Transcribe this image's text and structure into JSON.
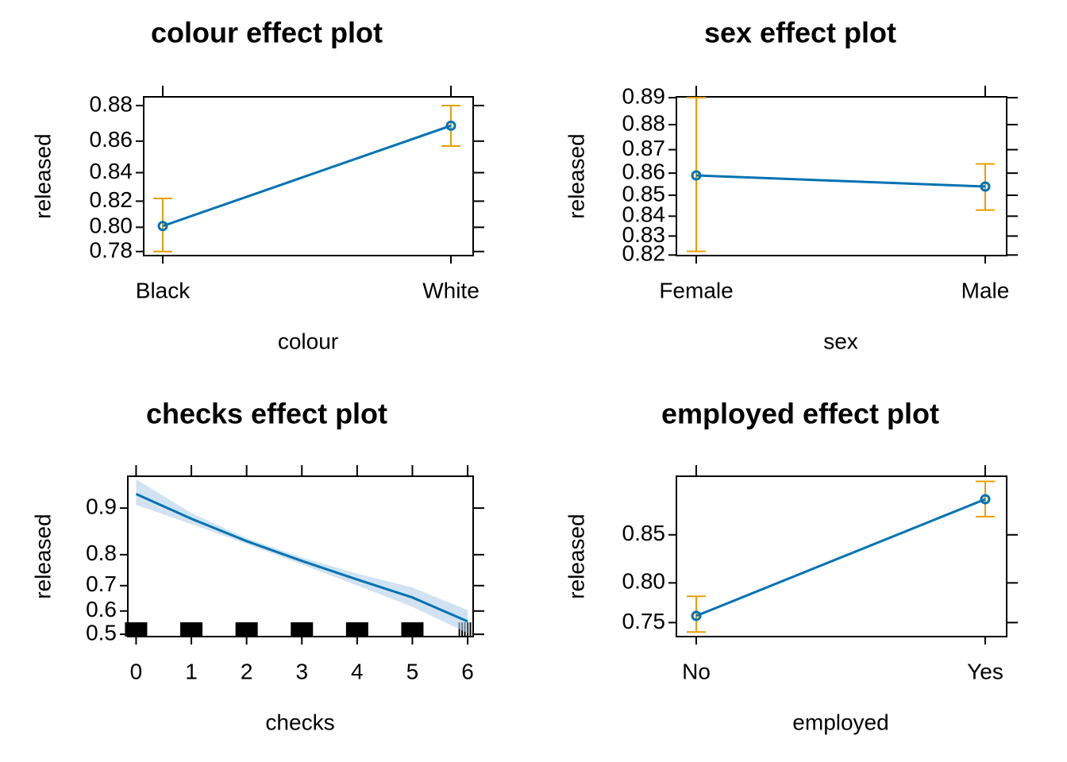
{
  "chart_data": [
    {
      "id": "colour",
      "type": "line",
      "title": "colour effect plot",
      "xlabel": "colour",
      "ylabel": "released",
      "categories": [
        "Black",
        "White"
      ],
      "values": [
        0.801,
        0.869
      ],
      "lower": [
        0.78,
        0.857
      ],
      "upper": [
        0.822,
        0.88
      ],
      "yticks": [
        0.78,
        0.8,
        0.82,
        0.84,
        0.86,
        0.88
      ],
      "ytick_labels": [
        "0.78",
        "0.80",
        "0.82",
        "0.84",
        "0.86",
        "0.88"
      ],
      "ylim": [
        0.7765,
        0.8845
      ],
      "yscale": "logit",
      "colors": {
        "line": "#0072b2",
        "ci": "#e69f00"
      }
    },
    {
      "id": "sex",
      "type": "line",
      "title": "sex effect plot",
      "xlabel": "sex",
      "ylabel": "released",
      "categories": [
        "Female",
        "Male"
      ],
      "values": [
        0.859,
        0.854
      ],
      "lower": [
        0.822,
        0.843
      ],
      "upper": [
        0.89,
        0.864
      ],
      "yticks": [
        0.82,
        0.83,
        0.84,
        0.85,
        0.86,
        0.87,
        0.88,
        0.89
      ],
      "ytick_labels": [
        "0.82",
        "0.83",
        "0.84",
        "0.85",
        "0.86",
        "0.87",
        "0.88",
        "0.89"
      ],
      "ylim": [
        0.8197,
        0.8903
      ],
      "yscale": "logit",
      "colors": {
        "line": "#0072b2",
        "ci": "#e69f00"
      }
    },
    {
      "id": "checks",
      "type": "line",
      "title": "checks effect plot",
      "xlabel": "checks",
      "ylabel": "released",
      "x": [
        0,
        1,
        2,
        3,
        4,
        5,
        6
      ],
      "values": [
        0.92,
        0.882,
        0.835,
        0.782,
        0.722,
        0.655,
        0.556
      ],
      "lower": [
        0.905,
        0.872,
        0.828,
        0.771,
        0.701,
        0.617,
        0.505
      ],
      "upper": [
        0.937,
        0.892,
        0.842,
        0.792,
        0.742,
        0.693,
        0.604
      ],
      "xticks": [
        0,
        1,
        2,
        3,
        4,
        5,
        6
      ],
      "xtick_labels": [
        "0",
        "1",
        "2",
        "3",
        "4",
        "5",
        "6"
      ],
      "yticks": [
        0.5,
        0.6,
        0.7,
        0.8,
        0.9
      ],
      "ytick_labels": [
        "0.5",
        "0.6",
        "0.7",
        "0.8",
        "0.9"
      ],
      "xlim": [
        -0.15,
        6.1
      ],
      "ylim": [
        0.49,
        0.94
      ],
      "yscale": "logit",
      "rug": [
        0,
        1,
        2,
        3,
        4,
        5,
        5.85,
        5.9,
        5.95,
        6.0,
        6.05
      ],
      "colors": {
        "line": "#0072b2",
        "band": "#b3d1ea"
      }
    },
    {
      "id": "employed",
      "type": "line",
      "title": "employed effect plot",
      "xlabel": "employed",
      "ylabel": "released",
      "categories": [
        "No",
        "Yes"
      ],
      "values": [
        0.759,
        0.88
      ],
      "lower": [
        0.737,
        0.866
      ],
      "upper": [
        0.784,
        0.893
      ],
      "yticks": [
        0.75,
        0.8,
        0.85
      ],
      "ytick_labels": [
        "0.75",
        "0.80",
        "0.85"
      ],
      "ylim": [
        0.7305,
        0.8965
      ],
      "yscale": "logit",
      "colors": {
        "line": "#0072b2",
        "ci": "#e69f00"
      }
    }
  ]
}
